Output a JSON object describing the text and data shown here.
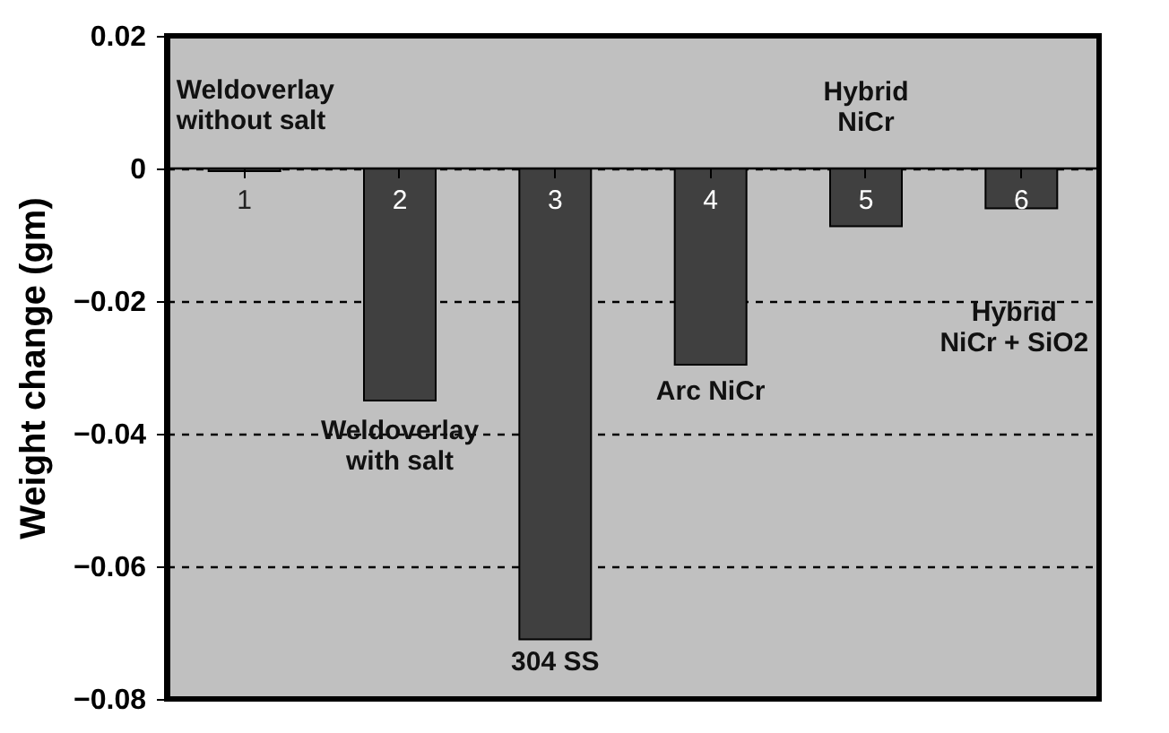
{
  "chart_data": {
    "type": "bar",
    "ylabel": "Weight change (gm)",
    "categories": [
      "1",
      "2",
      "3",
      "4",
      "5",
      "6"
    ],
    "values": [
      -0.0004,
      -0.035,
      -0.071,
      -0.0296,
      -0.0087,
      -0.006
    ],
    "color": "#404040",
    "ylim": [
      -0.08,
      0.02
    ],
    "yticks": [
      0.02,
      0,
      -0.02,
      -0.04,
      -0.06,
      -0.08
    ],
    "grid": "y",
    "line_style": "dashed",
    "annotations": [
      "Weldoverlay\nwithout salt",
      "Weldoverlay\nwith salt",
      "304 SS",
      "Arc NiCr",
      "Hybrid\nNiCr",
      "Hybrid\nNiCr + SiO2"
    ]
  }
}
